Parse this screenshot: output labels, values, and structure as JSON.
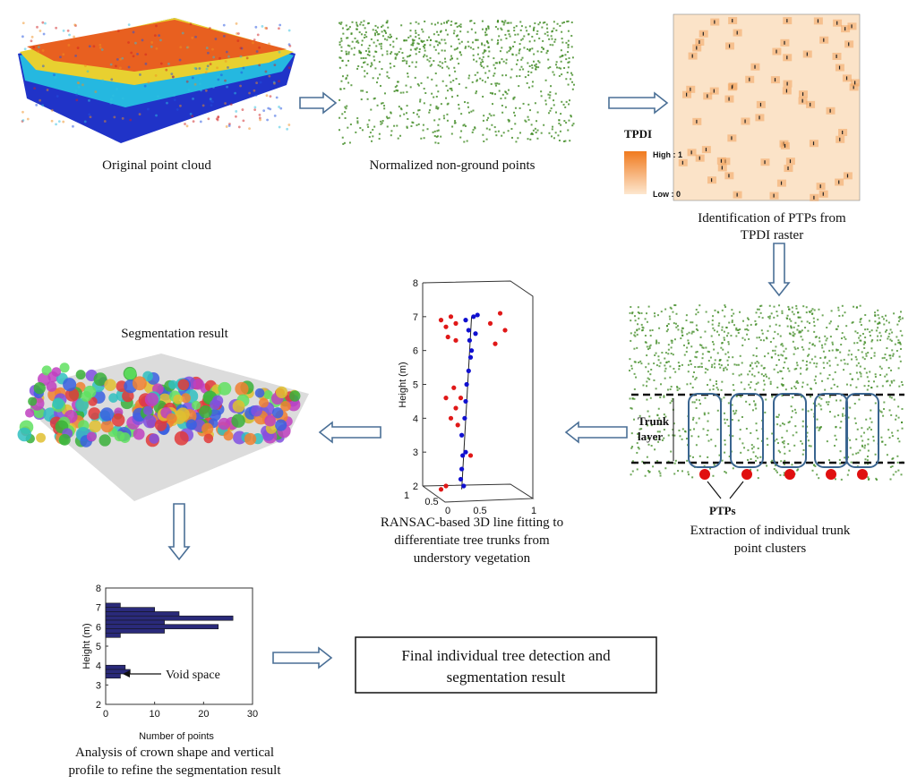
{
  "captions": {
    "original": "Original point cloud",
    "normalized": "Normalized non-ground points",
    "ptp_line1": "Identification of PTPs from",
    "ptp_line2": "TPDI raster",
    "trunk_line1": "Extraction of individual trunk",
    "trunk_line2": "point clusters",
    "ransac_line1": "RANSAC-based 3D line fitting to",
    "ransac_line2": "differentiate tree trunks from",
    "ransac_line3": "understory vegetation",
    "segmentation": "Segmentation result",
    "analysis_line1": "Analysis of crown shape and vertical",
    "analysis_line2": "profile to refine the segmentation result",
    "final_line1": "Final individual tree detection and",
    "final_line2": "segmentation result"
  },
  "tpdi_legend": {
    "title": "TPDI",
    "high": "High : 1",
    "low": "Low : 0",
    "color_high": "#f07a1e",
    "color_low": "#fde7cf"
  },
  "trunk_labels": {
    "trunk": "Trunk",
    "layer": "layer",
    "ptps": "PTPs"
  },
  "colors": {
    "arrow_stroke": "#4a6f96",
    "vegetation": "#3e8a22",
    "ptp": "#e01010",
    "trunk_points": "#1010d0",
    "other_points": "#e01818",
    "bars": "#2a2a7a"
  },
  "chart_data": [
    {
      "type": "scatter",
      "ylabel": "Height (m)",
      "ylim": [
        2,
        8
      ],
      "yticks": [
        "2",
        "3",
        "4",
        "5",
        "6",
        "7",
        "8"
      ],
      "xticks": [
        "0",
        "0.5",
        "1"
      ],
      "depth_ticks": [
        "0.5",
        "1"
      ],
      "series": [
        {
          "color": "#1010d0",
          "points": [
            [
              0.28,
              2.0
            ],
            [
              0.25,
              2.2
            ],
            [
              0.26,
              2.5
            ],
            [
              0.27,
              2.9
            ],
            [
              0.3,
              3.0
            ],
            [
              0.26,
              3.5
            ],
            [
              0.29,
              4.0
            ],
            [
              0.3,
              4.5
            ],
            [
              0.31,
              5.0
            ],
            [
              0.33,
              5.4
            ],
            [
              0.35,
              5.8
            ],
            [
              0.36,
              6.0
            ],
            [
              0.34,
              6.3
            ],
            [
              0.4,
              6.5
            ],
            [
              0.33,
              6.6
            ],
            [
              0.38,
              7.0
            ],
            [
              0.42,
              7.05
            ],
            [
              0.3,
              6.9
            ]
          ]
        },
        {
          "color": "#e01818",
          "points": [
            [
              0.05,
              6.9
            ],
            [
              0.1,
              6.7
            ],
            [
              0.15,
              7.0
            ],
            [
              0.2,
              6.8
            ],
            [
              0.12,
              6.4
            ],
            [
              0.2,
              6.3
            ],
            [
              0.6,
              6.2
            ],
            [
              0.65,
              7.1
            ],
            [
              0.55,
              6.8
            ],
            [
              0.7,
              6.6
            ],
            [
              0.1,
              4.6
            ],
            [
              0.2,
              4.3
            ],
            [
              0.15,
              4.0
            ],
            [
              0.22,
              3.8
            ],
            [
              0.18,
              4.9
            ],
            [
              0.25,
              4.6
            ],
            [
              0.35,
              2.9
            ],
            [
              0.05,
              1.9
            ],
            [
              0.1,
              2.0
            ]
          ]
        }
      ]
    },
    {
      "type": "bar",
      "orientation": "horizontal",
      "xlabel": "Number of points",
      "ylabel": "Height (m)",
      "xlim": [
        0,
        30
      ],
      "ylim": [
        2,
        8
      ],
      "xticks": [
        "0",
        "10",
        "20",
        "30"
      ],
      "yticks": [
        "2",
        "3",
        "4",
        "5",
        "6",
        "7",
        "8"
      ],
      "heights": [
        7.1,
        6.88,
        6.66,
        6.44,
        6.22,
        6.0,
        5.78,
        5.56,
        3.9,
        3.68,
        3.46
      ],
      "values": [
        3,
        10,
        15,
        26,
        12,
        23,
        12,
        3,
        4,
        5,
        3
      ],
      "annotation": "Void space"
    }
  ]
}
